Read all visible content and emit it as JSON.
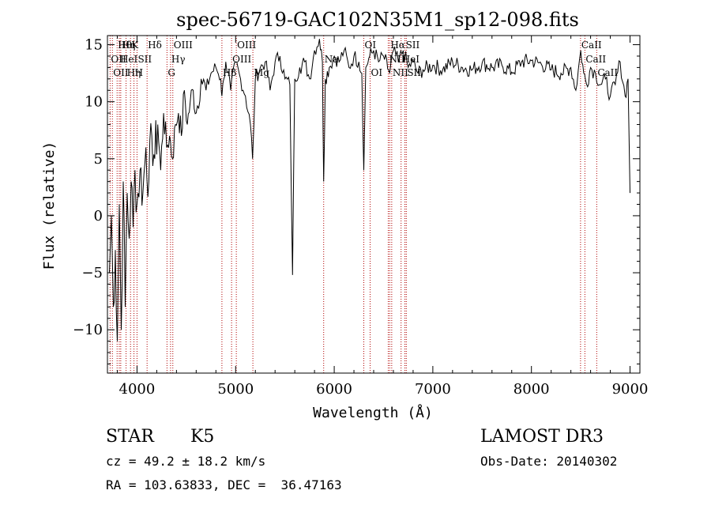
{
  "chart_data": {
    "type": "line",
    "title": "spec-56719-GAC102N35M1_sp12-098.fits",
    "xlabel": "Wavelength (Å)",
    "ylabel": "Flux (relative)",
    "xlim": [
      3700,
      9100
    ],
    "ylim": [
      -13.8,
      15.8
    ],
    "xticks": [
      4000,
      5000,
      6000,
      7000,
      8000,
      9000
    ],
    "yticks": [
      -10,
      -5,
      0,
      5,
      10,
      15
    ],
    "grid": false,
    "series": [
      {
        "name": "spectrum",
        "x": [
          3720,
          3740,
          3760,
          3780,
          3800,
          3820,
          3840,
          3860,
          3880,
          3900,
          3920,
          3940,
          3960,
          3980,
          4000,
          4030,
          4060,
          4090,
          4120,
          4150,
          4180,
          4210,
          4240,
          4270,
          4300,
          4330,
          4360,
          4390,
          4420,
          4450,
          4480,
          4510,
          4540,
          4570,
          4600,
          4650,
          4700,
          4750,
          4800,
          4850,
          4861,
          4880,
          4900,
          4950,
          5000,
          5050,
          5100,
          5150,
          5172,
          5200,
          5250,
          5300,
          5350,
          5400,
          5450,
          5500,
          5550,
          5577,
          5600,
          5650,
          5700,
          5750,
          5800,
          5850,
          5880,
          5893,
          5910,
          5950,
          6000,
          6050,
          6100,
          6150,
          6200,
          6250,
          6280,
          6300,
          6320,
          6360,
          6400,
          6450,
          6500,
          6563,
          6600,
          6650,
          6700,
          6750,
          6800,
          6850,
          6900,
          7000,
          7100,
          7200,
          7300,
          7400,
          7500,
          7600,
          7700,
          7800,
          7900,
          8000,
          8100,
          8200,
          8300,
          8400,
          8450,
          8500,
          8530,
          8560,
          8600,
          8650,
          8700,
          8750,
          8800,
          8850,
          8900,
          8950,
          8980,
          9000
        ],
        "y": [
          -5,
          0,
          -8,
          -3,
          -11,
          1,
          -10,
          3,
          -8,
          2,
          -2,
          3,
          -1,
          4,
          1,
          4,
          2,
          6,
          3,
          7,
          5,
          8,
          4,
          9,
          6,
          7,
          5,
          8,
          9,
          7,
          11,
          8,
          10,
          11,
          9,
          12,
          11,
          12.5,
          13,
          12,
          10.5,
          12,
          13.5,
          11,
          13.5,
          12,
          10.5,
          8,
          5,
          12,
          13,
          13.5,
          11,
          13.5,
          14,
          12,
          11.5,
          -5.2,
          12,
          13,
          13.5,
          12,
          14.5,
          15.5,
          13.5,
          3,
          12,
          13,
          14,
          13.5,
          14.5,
          13,
          14,
          13.5,
          12.5,
          4,
          13,
          14,
          14.5,
          13.5,
          14,
          12.5,
          14.5,
          13.5,
          14.5,
          13,
          13.5,
          12.5,
          12.8,
          13.2,
          12.8,
          13.5,
          13,
          12.8,
          13.4,
          13,
          13.2,
          12.6,
          13.5,
          13.6,
          13.3,
          12.8,
          12.5,
          13,
          11,
          14.5,
          12.5,
          11.5,
          13,
          12.5,
          11.5,
          12,
          10.5,
          11.5,
          13.5,
          10.5,
          12,
          2
        ]
      }
    ],
    "line_markers": [
      {
        "wavelength": 3727,
        "row": 1,
        "label": "OII"
      },
      {
        "wavelength": 3750,
        "row": 2,
        "label": "OII"
      },
      {
        "wavelength": 3798,
        "row": 0,
        "label": "Hθ"
      },
      {
        "wavelength": 3820,
        "row": 1,
        "label": "HeI"
      },
      {
        "wavelength": 3835,
        "row": 0,
        "label": "Hη"
      },
      {
        "wavelength": 3889,
        "row": 2,
        "label": "Hη"
      },
      {
        "wavelength": 3934,
        "row": 0,
        "label": "K"
      },
      {
        "wavelength": 3969,
        "row": 2,
        "label": "H"
      },
      {
        "wavelength": 4000,
        "row": 1,
        "label": "SII"
      },
      {
        "wavelength": 4102,
        "row": 0,
        "label": "Hδ"
      },
      {
        "wavelength": 4304,
        "row": 2,
        "label": "G"
      },
      {
        "wavelength": 4340,
        "row": 1,
        "label": "Hγ"
      },
      {
        "wavelength": 4363,
        "row": 0,
        "label": "OIII"
      },
      {
        "wavelength": 4861,
        "row": 2,
        "label": "Hβ"
      },
      {
        "wavelength": 4959,
        "row": 1,
        "label": "OIII"
      },
      {
        "wavelength": 5007,
        "row": 0,
        "label": "OIII"
      },
      {
        "wavelength": 5175,
        "row": 2,
        "label": "Mg"
      },
      {
        "wavelength": 5893,
        "row": 1,
        "label": "Na"
      },
      {
        "wavelength": 6300,
        "row": 0,
        "label": "OI"
      },
      {
        "wavelength": 6364,
        "row": 2,
        "label": "OI"
      },
      {
        "wavelength": 6548,
        "row": 1,
        "label": "NII"
      },
      {
        "wavelength": 6563,
        "row": 0,
        "label": "Hα"
      },
      {
        "wavelength": 6583,
        "row": 2,
        "label": "NII"
      },
      {
        "wavelength": 6678,
        "row": 1,
        "label": "HeI"
      },
      {
        "wavelength": 6717,
        "row": 0,
        "label": "SII"
      },
      {
        "wavelength": 6731,
        "row": 2,
        "label": "SII"
      },
      {
        "wavelength": 8498,
        "row": 0,
        "label": "CaII"
      },
      {
        "wavelength": 8542,
        "row": 1,
        "label": "CaII"
      },
      {
        "wavelength": 8662,
        "row": 2,
        "label": "CaII"
      }
    ]
  },
  "info": {
    "class": "STAR",
    "subclass": "K5",
    "survey": "LAMOST DR3",
    "cz": "cz = 49.2 ± 18.2 km/s",
    "obs_date": "Obs-Date: 20140302",
    "coords": "RA = 103.63833, DEC =  36.47163"
  },
  "colors": {
    "spectrum": "#000000",
    "marker": "#b00000",
    "axis": "#000000"
  }
}
